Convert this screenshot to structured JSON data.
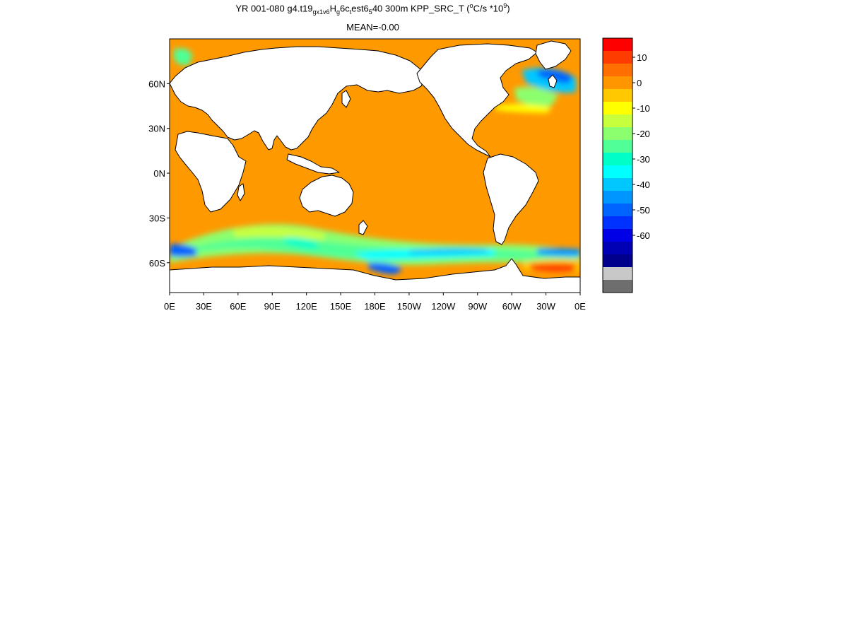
{
  "title": "YR 001-080 g4.t19_gx1v6.Hg6c_test6_5_40 300m KPP_SRC_T (°C/s *10⁹)",
  "title_parts": {
    "a": "YR 001-080 g4.t19",
    "sub1": "gx1v6",
    "b": "H",
    "sub2": "g",
    "c": "6c",
    "sub3": "t",
    "d": "est6",
    "sub4": "5",
    "e": "40 300m KPP_SRC_T (",
    "sup1": "o",
    "f": "C/s *10",
    "sup2": "9",
    "g": ")"
  },
  "subtitle": "MEAN=-0.00",
  "chart_data": {
    "type": "heatmap",
    "x_ticks": [
      "0E",
      "30E",
      "60E",
      "90E",
      "120E",
      "150E",
      "180E",
      "150W",
      "120W",
      "90W",
      "60W",
      "30W",
      "0E"
    ],
    "y_ticks": [
      "60N",
      "30N",
      "0N",
      "30S",
      "60S"
    ],
    "xlim": [
      0,
      360
    ],
    "ylim": [
      -80,
      90
    ],
    "colorbar": {
      "labels": [
        "10",
        "0",
        "-10",
        "-20",
        "-30",
        "-40",
        "-50",
        "-60"
      ],
      "colors": [
        "#ff0000",
        "#ff3c00",
        "#ff6e00",
        "#ff9600",
        "#ffc800",
        "#ffff00",
        "#c8ff3c",
        "#8cff6e",
        "#50ff96",
        "#00ffc8",
        "#00ffff",
        "#00c8ff",
        "#0096ff",
        "#0064ff",
        "#0032ff",
        "#0000e6",
        "#0000b4",
        "#00008c",
        "#c8c8c8",
        "#6e6e6e"
      ]
    },
    "colors": {
      "ocean_background": "#ff9900",
      "land": "#ffffff",
      "coast": "#000000"
    }
  }
}
